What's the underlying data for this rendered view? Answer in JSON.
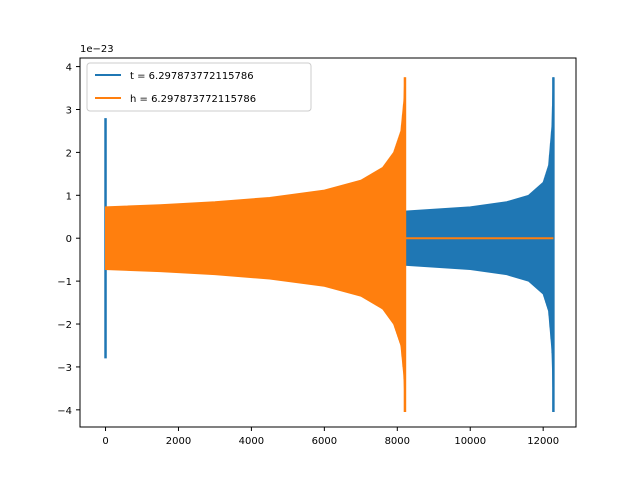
{
  "chart_data": {
    "type": "line",
    "title": "",
    "xlabel": "",
    "ylabel": "",
    "y_offset_label": "1e−23",
    "xlim": [
      -700,
      12900
    ],
    "ylim": [
      -4.4,
      4.2
    ],
    "y_unit_scale": 1e-23,
    "x_ticks": [
      0,
      2000,
      4000,
      6000,
      8000,
      10000,
      12000
    ],
    "x_tick_labels": [
      "0",
      "2000",
      "4000",
      "6000",
      "8000",
      "10000",
      "12000"
    ],
    "y_ticks": [
      -4,
      -3,
      -2,
      -1,
      0,
      1,
      2,
      3,
      4
    ],
    "y_tick_labels": [
      "−4",
      "−3",
      "−2",
      "−1",
      "0",
      "1",
      "2",
      "3",
      "4"
    ],
    "grid": false,
    "legend_position": "top-left",
    "series": [
      {
        "name": "t = 6.297873772115786",
        "color": "#1f77b4",
        "segments": [
          {
            "kind": "spike",
            "x": 0,
            "ymin": -2.8,
            "ymax": 2.8
          },
          {
            "kind": "chirp",
            "x": [
              0,
              2000,
              4000,
              6000,
              8000,
              10000,
              11000,
              11600,
              12000,
              12150,
              12240,
              12280
            ],
            "envelope": [
              0.4,
              0.45,
              0.5,
              0.55,
              0.62,
              0.73,
              0.85,
              1.0,
              1.3,
              1.7,
              2.6,
              3.75
            ]
          },
          {
            "kind": "spike",
            "x": 12280,
            "ymin": -4.05,
            "ymax": 3.75
          }
        ]
      },
      {
        "name": "h = 6.297873772115786",
        "color": "#ff7f0e",
        "segments": [
          {
            "kind": "chirp",
            "x": [
              0,
              1500,
              3000,
              4500,
              6000,
              7000,
              7600,
              7900,
              8100,
              8180,
              8210
            ],
            "envelope": [
              0.73,
              0.78,
              0.85,
              0.95,
              1.12,
              1.35,
              1.65,
              2.0,
              2.5,
              3.2,
              3.75
            ]
          },
          {
            "kind": "spike",
            "x": 8210,
            "ymin": -4.05,
            "ymax": 3.75
          },
          {
            "kind": "flat",
            "x": [
              8210,
              12280
            ],
            "y": 0
          }
        ]
      }
    ]
  }
}
